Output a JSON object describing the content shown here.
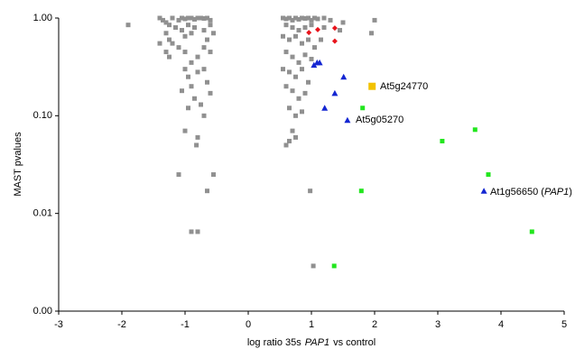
{
  "chart_data": {
    "type": "scatter",
    "y_label": "MAST pvalues",
    "x_label": [
      "log ratio 35s",
      "PAP1",
      "vs control"
    ],
    "xlim": [
      -3,
      5
    ],
    "xticks": [
      -3,
      -2,
      -1,
      0,
      1,
      2,
      3,
      4,
      5
    ],
    "ylim": [
      0.001,
      1
    ],
    "yscale": "log",
    "yticks": [
      {
        "value": 0.001,
        "label": "0.00"
      },
      {
        "value": 0.01,
        "label": "0.01"
      },
      {
        "value": 0.1,
        "label": "0.10"
      },
      {
        "value": 1,
        "label": "1.00"
      }
    ],
    "series": [
      {
        "color": "#909090",
        "marker": "square",
        "x": [
          -1.4,
          -1.35,
          -1.3,
          -1.25,
          -1.2,
          -1.15,
          -1.1,
          -1.05,
          -1.0,
          -0.95,
          -0.9,
          -0.85,
          -0.8,
          -0.75,
          -0.7,
          -0.65,
          -0.6,
          -1.3,
          -1.25,
          -1.2,
          -1.05,
          -1.0,
          -0.95,
          -0.9,
          -0.85,
          -0.7,
          -0.65,
          -0.6,
          -0.55,
          -1.3,
          -1.25,
          -1.1,
          -1.0,
          -0.9,
          -0.8,
          -0.7,
          -0.6,
          -1.0,
          -0.95,
          -0.9,
          -0.8,
          -0.7,
          -0.65,
          -1.05,
          -0.85,
          -0.6,
          -0.95,
          -0.75,
          -0.7,
          -1.0,
          -0.8,
          -0.82,
          -1.1,
          -0.55,
          -0.65,
          -0.9,
          -0.8,
          -1.9,
          -1.4,
          0.55,
          0.6,
          0.65,
          0.7,
          0.75,
          0.8,
          0.85,
          0.9,
          0.95,
          1.0,
          1.05,
          1.1,
          1.2,
          1.3,
          0.6,
          0.7,
          0.8,
          0.9,
          1.0,
          1.2,
          0.55,
          0.65,
          0.75,
          0.85,
          0.95,
          1.05,
          1.15,
          0.6,
          0.7,
          0.8,
          0.9,
          1.0,
          0.55,
          0.65,
          0.75,
          0.85,
          0.95,
          0.6,
          0.7,
          0.8,
          0.9,
          0.65,
          0.75,
          0.85,
          0.7,
          0.75,
          0.6,
          0.65,
          0.98,
          1.03,
          2.0,
          1.95,
          1.5,
          1.45
        ],
        "values": [
          1.0,
          0.95,
          0.9,
          0.85,
          1.0,
          0.8,
          0.95,
          1.0,
          0.98,
          1.0,
          1.0,
          0.97,
          1.0,
          1.0,
          0.99,
          1.0,
          0.95,
          0.7,
          0.6,
          0.55,
          0.75,
          0.65,
          0.85,
          0.7,
          0.8,
          0.75,
          0.6,
          0.85,
          0.7,
          0.45,
          0.4,
          0.5,
          0.45,
          0.35,
          0.4,
          0.5,
          0.45,
          0.3,
          0.25,
          0.2,
          0.28,
          0.3,
          0.22,
          0.18,
          0.15,
          0.17,
          0.12,
          0.13,
          0.1,
          0.07,
          0.06,
          0.05,
          0.025,
          0.025,
          0.017,
          0.0065,
          0.0065,
          0.85,
          0.55,
          1.0,
          0.98,
          1.0,
          0.95,
          1.0,
          0.97,
          1.0,
          0.99,
          1.0,
          0.95,
          1.0,
          0.98,
          1.0,
          0.95,
          0.85,
          0.8,
          0.75,
          0.8,
          0.85,
          0.8,
          0.65,
          0.6,
          0.65,
          0.55,
          0.6,
          0.5,
          0.6,
          0.45,
          0.4,
          0.35,
          0.42,
          0.38,
          0.3,
          0.28,
          0.25,
          0.3,
          0.22,
          0.2,
          0.18,
          0.15,
          0.17,
          0.12,
          0.1,
          0.11,
          0.07,
          0.06,
          0.05,
          0.055,
          0.017,
          0.0029,
          0.95,
          0.7,
          0.9,
          0.75
        ]
      },
      {
        "color": "#e8141c",
        "marker": "diamond",
        "x": [
          0.96,
          1.1,
          1.37,
          1.37
        ],
        "values": [
          0.71,
          0.76,
          0.79,
          0.58
        ]
      },
      {
        "color": "#1426d2",
        "marker": "triangle",
        "x": [
          1.04,
          1.09,
          1.13,
          1.51,
          1.37,
          1.21,
          1.57,
          3.73
        ],
        "values": [
          0.33,
          0.35,
          0.35,
          0.25,
          0.17,
          0.12,
          0.09,
          0.017
        ]
      },
      {
        "color": "#22e61e",
        "marker": "square",
        "x": [
          1.81,
          1.79,
          1.36,
          3.07,
          3.59,
          3.8,
          4.49
        ],
        "values": [
          0.12,
          0.017,
          0.0029,
          0.055,
          0.072,
          0.025,
          0.0065
        ]
      },
      {
        "color": "#f2c200",
        "marker": "bigsquare",
        "x": [
          1.96
        ],
        "values": [
          0.2
        ]
      }
    ],
    "annotations": [
      {
        "text": "At5g24770"
      },
      {
        "text": "At5g05270"
      },
      {
        "text": [
          "At1g56650  (",
          "PAP1",
          ")"
        ]
      }
    ]
  }
}
